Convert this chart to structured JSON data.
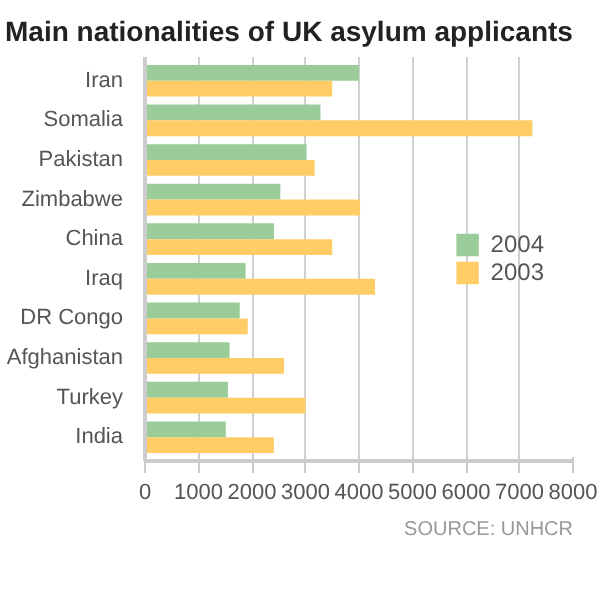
{
  "chart_data": {
    "type": "bar",
    "orientation": "horizontal",
    "title": "Main nationalities of UK asylum applicants",
    "categories": [
      "Iran",
      "Somalia",
      "Pakistan",
      "Zimbabwe",
      "China",
      "Iraq",
      "DR Congo",
      "Afghanistan",
      "Turkey",
      "India"
    ],
    "series": [
      {
        "name": "2004",
        "color": "#99cc99",
        "values": [
          4000,
          3280,
          3020,
          2530,
          2410,
          1880,
          1770,
          1580,
          1550,
          1510
        ]
      },
      {
        "name": "2003",
        "color": "#ffcc66",
        "values": [
          3500,
          7240,
          3170,
          4020,
          3500,
          4300,
          1920,
          2600,
          3000,
          2410
        ]
      }
    ],
    "xlim": [
      0,
      8000
    ],
    "xticks": [
      0,
      1000,
      2000,
      3000,
      4000,
      5000,
      6000,
      7000,
      8000
    ],
    "grid": "x",
    "legend": "right",
    "annotations": [
      "SOURCE: UNHCR"
    ]
  }
}
